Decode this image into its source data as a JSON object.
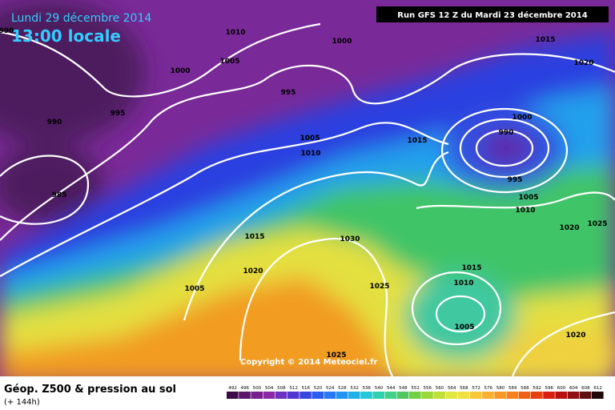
{
  "header": {
    "date": "Lundi 29 décembre 2014",
    "time": "13:00 locale",
    "run": "Run GFS 12 Z du Mardi 23 décembre 2014"
  },
  "copyright": "Copyright © 2014 Meteociel.fr",
  "footer": {
    "title": "Géop. Z500 & pression au sol",
    "lead": "(+ 144h)"
  },
  "isobars": [
    "990",
    "1010",
    "1000",
    "1015",
    "1005",
    "1020",
    "1000",
    "995",
    "995",
    "990",
    "1000",
    "990",
    "1005",
    "1015",
    "1010",
    "995",
    "985",
    "1005",
    "1010",
    "1025",
    "1020",
    "1015",
    "1030",
    "1020",
    "1015",
    "1010",
    "1025",
    "1005",
    "1005",
    "1020",
    "1025"
  ],
  "legend": {
    "ticks": [
      492,
      496,
      500,
      504,
      508,
      512,
      516,
      520,
      524,
      528,
      532,
      536,
      540,
      544,
      548,
      552,
      556,
      560,
      564,
      568,
      572,
      576,
      580,
      584,
      588,
      592,
      596,
      600,
      604,
      608,
      612
    ],
    "colors": [
      "#3c0a46",
      "#5a1468",
      "#781e8c",
      "#8c28a8",
      "#6e30c0",
      "#5038d0",
      "#3846e0",
      "#2c5cf0",
      "#2878f8",
      "#2094f0",
      "#20b0e8",
      "#20c8d8",
      "#30d0b0",
      "#40d088",
      "#50c860",
      "#70d040",
      "#98d838",
      "#c0e038",
      "#e0e840",
      "#f0e040",
      "#f8c838",
      "#f8b030",
      "#f89828",
      "#f88020",
      "#f06018",
      "#e84010",
      "#d82010",
      "#b81010",
      "#901010",
      "#601010",
      "#200808"
    ]
  }
}
